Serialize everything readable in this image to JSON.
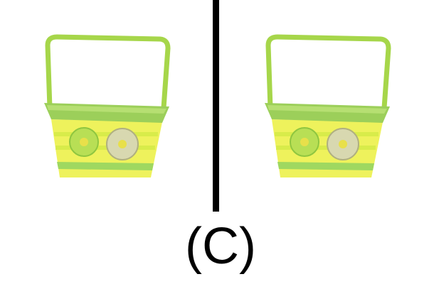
{
  "label": "(C)"
}
